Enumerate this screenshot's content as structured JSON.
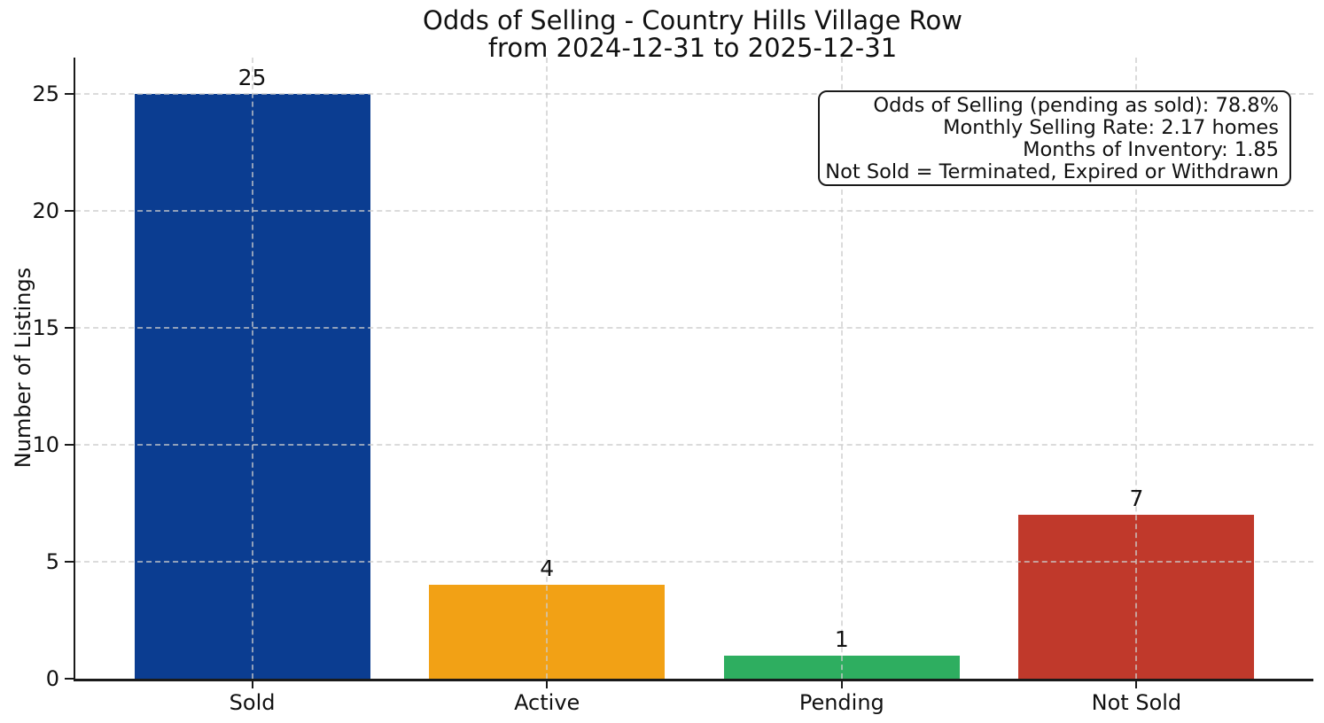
{
  "chart_data": {
    "type": "bar",
    "title": "Odds of Selling - Country Hills Village Row",
    "subtitle": "from 2024-12-31 to 2025-12-31",
    "ylabel": "Number of Listings",
    "xlabel": "",
    "categories": [
      "Sold",
      "Active",
      "Pending",
      "Not Sold"
    ],
    "values": [
      25,
      4,
      1,
      7
    ],
    "bar_colors": [
      "#0b3d91",
      "#f2a115",
      "#2eae60",
      "#c0392b"
    ],
    "yticks": [
      0,
      5,
      10,
      15,
      20,
      25
    ],
    "ylim": [
      0,
      26.55
    ],
    "xlim": [
      -0.6,
      3.6
    ],
    "bar_width": 0.8,
    "grid": "both, dashed, light-gray, drawn above bars",
    "legend": "none",
    "annotation": {
      "lines": [
        "Odds of Selling (pending as sold): 78.8%",
        "Monthly Selling Rate: 2.17 homes",
        "Months of Inventory: 1.85",
        "Not Sold = Terminated, Expired or Withdrawn"
      ]
    }
  }
}
